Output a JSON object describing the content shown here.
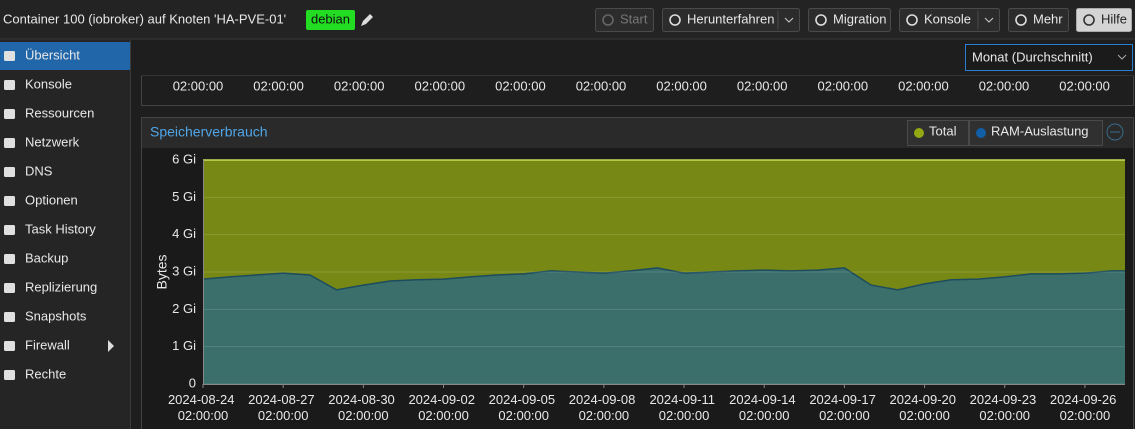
{
  "header": {
    "title": "Container 100 (iobroker) auf Knoten 'HA-PVE-01'",
    "tag": "debian",
    "buttons": [
      "Start",
      "Herunterfahren",
      "Migration",
      "Konsole",
      "Mehr",
      "Hilfe"
    ]
  },
  "sidebar": {
    "items": [
      "Übersicht",
      "Konsole",
      "Ressourcen",
      "Netzwerk",
      "DNS",
      "Optionen",
      "Task History",
      "Backup",
      "Replizierung",
      "Snapshots",
      "Firewall",
      "Rechte"
    ],
    "selected": 0
  },
  "timeframe": "Monat (Durchschnitt)",
  "upper_chart_times": [
    "02:00:00",
    "02:00:00",
    "02:00:00",
    "02:00:00",
    "02:00:00",
    "02:00:00",
    "02:00:00",
    "02:00:00",
    "02:00:00",
    "02:00:00",
    "02:00:00",
    "02:00:00"
  ],
  "chart_data": {
    "type": "area",
    "title": "Speicherverbrauch",
    "y_label": "Bytes",
    "x": [
      "2024-08-24 02:00:00",
      "2024-08-25 02:00:00",
      "2024-08-26 02:00:00",
      "2024-08-27 02:00:00",
      "2024-08-28 02:00:00",
      "2024-08-29 02:00:00",
      "2024-08-30 02:00:00",
      "2024-08-31 02:00:00",
      "2024-09-01 02:00:00",
      "2024-09-02 02:00:00",
      "2024-09-03 02:00:00",
      "2024-09-04 02:00:00",
      "2024-09-05 02:00:00",
      "2024-09-06 02:00:00",
      "2024-09-07 02:00:00",
      "2024-09-08 02:00:00",
      "2024-09-09 02:00:00",
      "2024-09-10 02:00:00",
      "2024-09-11 02:00:00",
      "2024-09-12 02:00:00",
      "2024-09-13 02:00:00",
      "2024-09-14 02:00:00",
      "2024-09-15 02:00:00",
      "2024-09-16 02:00:00",
      "2024-09-17 02:00:00",
      "2024-09-18 02:00:00",
      "2024-09-19 02:00:00",
      "2024-09-20 02:00:00",
      "2024-09-21 02:00:00",
      "2024-09-22 02:00:00",
      "2024-09-23 02:00:00",
      "2024-09-24 02:00:00",
      "2024-09-25 02:00:00",
      "2024-09-26 02:00:00",
      "2024-09-27 02:00:00"
    ],
    "series": [
      {
        "name": "Total",
        "color": "#94a813",
        "values": [
          6,
          6,
          6,
          6,
          6,
          6,
          6,
          6,
          6,
          6,
          6,
          6,
          6,
          6,
          6,
          6,
          6,
          6,
          6,
          6,
          6,
          6,
          6,
          6,
          6,
          6,
          6,
          6,
          6,
          6,
          6,
          6,
          6,
          6,
          6
        ]
      },
      {
        "name": "RAM-Auslastung",
        "color": "#115fa6",
        "values": [
          2.81,
          2.87,
          2.92,
          2.97,
          2.92,
          2.52,
          2.65,
          2.76,
          2.79,
          2.81,
          2.87,
          2.92,
          2.95,
          3.03,
          3.0,
          2.97,
          3.03,
          3.11,
          2.97,
          3.0,
          3.03,
          3.05,
          3.03,
          3.05,
          3.11,
          2.65,
          2.52,
          2.68,
          2.79,
          2.81,
          2.87,
          2.95,
          2.95,
          2.97,
          3.03
        ]
      }
    ],
    "xlim": [
      "2024-08-24 02:00:00",
      "2024-09-27 14:00:00"
    ],
    "xticks": [
      "2024-08-24 02:00:00",
      "2024-08-27 02:00:00",
      "2024-08-30 02:00:00",
      "2024-09-02 02:00:00",
      "2024-09-05 02:00:00",
      "2024-09-08 02:00:00",
      "2024-09-11 02:00:00",
      "2024-09-14 02:00:00",
      "2024-09-17 02:00:00",
      "2024-09-20 02:00:00",
      "2024-09-23 02:00:00",
      "2024-09-26 02:00:00"
    ],
    "ylim": [
      0,
      6
    ],
    "yticks": [
      0,
      {
        "value": 1,
        "label": "1 Gi"
      },
      {
        "value": 2,
        "label": "2 Gi"
      },
      {
        "value": 3,
        "label": "3 Gi"
      },
      {
        "value": 4,
        "label": "4 Gi"
      },
      {
        "value": 5,
        "label": "5 Gi"
      },
      {
        "value": 6,
        "label": "6 Gi"
      }
    ],
    "grid": true
  }
}
